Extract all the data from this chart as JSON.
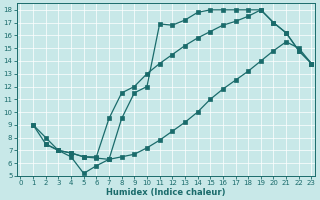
{
  "xlabel": "Humidex (Indice chaleur)",
  "xlim": [
    -0.3,
    23.3
  ],
  "ylim": [
    5.0,
    18.5
  ],
  "xticks": [
    0,
    1,
    2,
    3,
    4,
    5,
    6,
    7,
    8,
    9,
    10,
    11,
    12,
    13,
    14,
    15,
    16,
    17,
    18,
    19,
    20,
    21,
    22,
    23
  ],
  "yticks": [
    5,
    6,
    7,
    8,
    9,
    10,
    11,
    12,
    13,
    14,
    15,
    16,
    17,
    18
  ],
  "bg_color": "#c8e8e8",
  "line_color": "#1a6b6b",
  "curve1_x": [
    1,
    2,
    3,
    4,
    5,
    6,
    7,
    8,
    9,
    10,
    11,
    12,
    13,
    14,
    15,
    16,
    17,
    18,
    19,
    20,
    21,
    22,
    23
  ],
  "curve1_y": [
    9.0,
    8.0,
    7.0,
    6.5,
    5.2,
    5.8,
    6.3,
    9.5,
    11.5,
    12.0,
    16.9,
    16.8,
    17.2,
    17.8,
    18.0,
    18.0,
    18.0,
    18.0,
    18.0,
    17.0,
    16.2,
    14.8,
    13.8
  ],
  "curve2_x": [
    1,
    2,
    3,
    4,
    5,
    6,
    7,
    8,
    9,
    10,
    11,
    12,
    13,
    14,
    15,
    16,
    17,
    18,
    19,
    20,
    21,
    22,
    23
  ],
  "curve2_y": [
    9.0,
    7.5,
    7.0,
    6.8,
    6.5,
    6.5,
    9.5,
    11.5,
    12.0,
    13.0,
    13.8,
    14.5,
    15.2,
    15.8,
    16.3,
    16.8,
    17.1,
    17.5,
    18.0,
    17.0,
    16.2,
    14.8,
    13.8
  ],
  "curve3_x": [
    2,
    3,
    4,
    5,
    6,
    7,
    8,
    9,
    10,
    11,
    12,
    13,
    14,
    15,
    16,
    17,
    18,
    19,
    20,
    21,
    22,
    23
  ],
  "curve3_y": [
    7.5,
    7.0,
    6.8,
    6.5,
    6.4,
    6.3,
    6.5,
    6.7,
    7.2,
    7.8,
    8.5,
    9.2,
    10.0,
    11.0,
    11.8,
    12.5,
    13.2,
    14.0,
    14.8,
    15.5,
    15.0,
    13.8
  ]
}
